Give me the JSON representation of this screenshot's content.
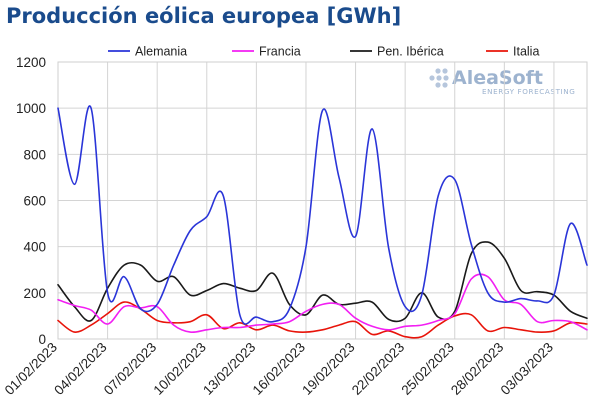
{
  "chart_data": {
    "type": "line",
    "title": "Producción eólica europea [GWh]",
    "xlabel": "",
    "ylabel": "",
    "ylim": [
      0,
      1200
    ],
    "yticks": [
      0,
      200,
      400,
      600,
      800,
      1000,
      1200
    ],
    "grid": true,
    "legend_position": "top",
    "x": [
      "2023-02-01",
      "2023-02-02",
      "2023-02-03",
      "2023-02-04",
      "2023-02-05",
      "2023-02-06",
      "2023-02-07",
      "2023-02-08",
      "2023-02-09",
      "2023-02-10",
      "2023-02-11",
      "2023-02-12",
      "2023-02-13",
      "2023-02-14",
      "2023-02-15",
      "2023-02-16",
      "2023-02-17",
      "2023-02-18",
      "2023-02-19",
      "2023-02-20",
      "2023-02-21",
      "2023-02-22",
      "2023-02-23",
      "2023-02-24",
      "2023-02-25",
      "2023-02-26",
      "2023-02-27",
      "2023-02-28",
      "2023-03-01",
      "2023-03-02",
      "2023-03-03",
      "2023-03-04",
      "2023-03-05"
    ],
    "x_tick_labels": [
      "01/02/2023",
      "04/02/2023",
      "07/02/2023",
      "10/02/2023",
      "13/02/2023",
      "16/02/2023",
      "19/02/2023",
      "22/02/2023",
      "25/02/2023",
      "28/02/2023",
      "03/03/2023"
    ],
    "series": [
      {
        "name": "Alemania",
        "color": "#2a35d8",
        "values": [
          1000,
          670,
          1000,
          200,
          270,
          130,
          150,
          320,
          470,
          530,
          620,
          105,
          95,
          75,
          130,
          400,
          990,
          700,
          445,
          910,
          395,
          140,
          190,
          620,
          690,
          410,
          200,
          160,
          175,
          165,
          190,
          500,
          320
        ]
      },
      {
        "name": "Francia",
        "color": "#f21ff2",
        "values": [
          170,
          145,
          125,
          65,
          140,
          135,
          140,
          60,
          30,
          40,
          50,
          50,
          60,
          65,
          75,
          120,
          150,
          150,
          90,
          55,
          40,
          55,
          60,
          80,
          110,
          260,
          270,
          170,
          150,
          75,
          80,
          75,
          40
        ]
      },
      {
        "name": "Pen. Ibérica",
        "color": "#1a1a1a",
        "values": [
          235,
          140,
          80,
          220,
          320,
          320,
          250,
          270,
          190,
          210,
          240,
          220,
          210,
          285,
          150,
          105,
          190,
          150,
          155,
          160,
          85,
          90,
          200,
          95,
          120,
          370,
          420,
          350,
          210,
          205,
          190,
          120,
          90
        ]
      },
      {
        "name": "Italia",
        "color": "#e8140a",
        "values": [
          80,
          30,
          60,
          110,
          160,
          130,
          80,
          70,
          75,
          105,
          45,
          70,
          40,
          60,
          35,
          30,
          40,
          60,
          75,
          20,
          35,
          10,
          10,
          60,
          100,
          105,
          35,
          50,
          40,
          30,
          35,
          70,
          65
        ]
      }
    ]
  },
  "watermark": {
    "brand": "AleaSoft",
    "tagline": "ENERGY FORECASTING"
  }
}
